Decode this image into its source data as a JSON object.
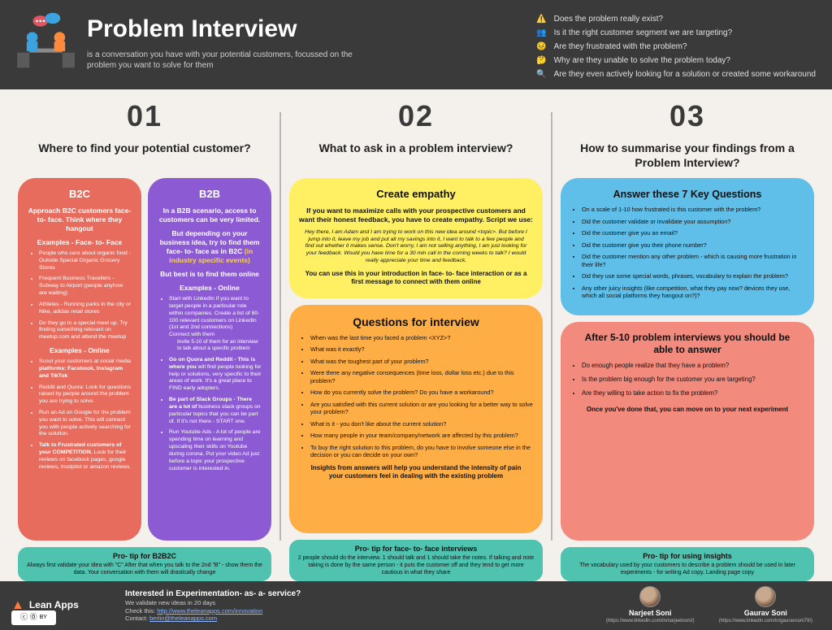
{
  "colors": {
    "page_bg": "#f4f0eb",
    "header_bg": "#3a3a3a",
    "footer_bg": "#3a3a3a",
    "divider": "#b6b6b6",
    "salmon": "#e86c5d",
    "purple": "#8c5bd4",
    "purple_accent": "#ffd24a",
    "yellow": "#fff063",
    "orange": "#ffae45",
    "blue": "#5fbfe9",
    "rose": "#f28a7d",
    "teal": "#4fc3b0"
  },
  "header": {
    "title": "Problem Interview",
    "subtitle": "is a conversation you have with your potential customers, focussed on the problem you want to solve for them",
    "questions": [
      "Does the problem really exist?",
      "Is it the right customer segment we are targeting?",
      "Are they frustrated with the problem?",
      "Why are they unable to solve the problem today?",
      "Are they even actively looking for a solution or created some workaround"
    ],
    "q_icons": [
      "⚠️",
      "👥",
      "😣",
      "🤔",
      "🔍"
    ]
  },
  "col1": {
    "num": "01",
    "title": "Where to find your potential customer?",
    "b2c": {
      "heading": "B2C",
      "lead": "Approach B2C customers face- to- face. Think where they hangout",
      "sub1": "Examples - Face- to- Face",
      "face_items": [
        "People who care about organic food - Outside Special Organic Grocery Stores",
        "Frequent Business Travellers - Subway to Airport (people anyhow are waiting)",
        "Athletes - Running parks in the city or Nike, adidas retail stores",
        "Do they go to a special meet up. Try finding something relevant on meetup.com and attend the meetup"
      ],
      "sub2": "Examples - Online",
      "online_items": [
        "Scout your customers at social media <b>platforms: Facebook, Instagram and TikTok</b>",
        "Reddit and Quora: Look for questions raised by people around the problem you are trying to solve.",
        "Run an Ad on Google for the problem you want to solve. This will connect you with people actively searching for the solution.",
        "<b>Talk to Frustrated customers of your COMPETITION.</b> Look for their reviews on facebook pages, google reviews, trustpilot or amazon reviews."
      ]
    },
    "b2b": {
      "heading": "B2B",
      "lead": "In a B2B scenario, access to customers can be very limited.",
      "lead2_pre": "But depending on your business idea, try to find them face- to- face as in B2C ",
      "lead2_accent": "(in industry specific events)",
      "lead3": "But best is to find them online",
      "sub": "Examples - Online",
      "items": [
        "Start with LinkedIn if you want to target people in a particular role within companies. Create a list of 80-100 relevant customers on LinkedIn (1st and 2nd connections)<br>Connect with them<div class='nested'>Invite 5-10 of them for an interview to talk about a specific problem</div>",
        "<b>Go on Quora and Reddit - This is where you</b> will find people looking for help or solutions, very specific to their areas of work. It's a great place to FIND early adopters.",
        "<b>Be part of Slack Groups - There are a lot of</b> business slack groups on particular topics that you can be part of. If it's not there - START one.",
        "Run Youtube Ads - A lot of people are spending time on learning and upscaling their skills on Youtube during corona. Put your video Ad just before a topic your prospective customer is interested in."
      ]
    },
    "protip": {
      "title": "Pro- tip for B2B2C",
      "body": "Always first validate your idea with \"C\"\nAfter that when you talk to the 2nd \"B\" - show them the data. Your conversation with them will drastically change"
    }
  },
  "col2": {
    "num": "02",
    "title": "What to ask in a problem interview?",
    "empathy": {
      "heading": "Create empathy",
      "lead": "If you want to maximize calls with your prospective customers and want their honest feedback, you have to create empathy. Script we use:",
      "script": "Hey there, I am Adam and I am trying to work on this new idea around <topic>. But before I jump into it, leave my job and put all my savings into it, I want to talk to a few people and find out whether it makes sense. Don't worry, I am not selling anything, I am just looking for your feedback. Would you have time for a 30 min call in the coming weeks to talk? I would really appreciate your time and feedback.",
      "foot": "You can use this in your introduction in face- to- face interaction or as a first message to connect with them online"
    },
    "questions": {
      "heading": "Questions for interview",
      "items": [
        "When was the last time you faced a problem <XYZ>?",
        "What was it exactly?",
        "What was the toughest part of your problem?",
        "Were there any negative consequences (time loss, dollar loss etc.) due to this problem?",
        "How do you currently solve the problem? Do you have a workaround?",
        "Are you satisfied with this current solution or are you looking for a better way to solve your problem?",
        "What is it - you don't like about the current solution?",
        "How many people in your team/company/network are affected by this problem?",
        "To buy the right solution to this problem, do you have to involve someone else in the decision or you can decide on your own?"
      ],
      "closing": "Insights from answers will help you understand the intensity of pain your customers feel in dealing with the existing problem"
    },
    "protip": {
      "title": "Pro- tip for face- to- face interviews",
      "body": "2 people should do the interview. 1 should talk and 1 should take the notes. If talking and note taking is done by the same person - it puts the customer off and they tend to get more cautious in what they share"
    }
  },
  "col3": {
    "num": "03",
    "title": "How to summarise your findings from a Problem Interview?",
    "key7": {
      "heading": "Answer these 7 Key Questions",
      "items": [
        "On a scale of 1-10 how frustrated is this customer with the problem?",
        "Did the customer validate or invalidate your assumption?",
        "Did the customer give you an email?",
        "Did the customer give you their phone number?",
        "Did the customer mention any other problem - which is causing more frustration in their life?",
        "Did they use some special words, phrases, vocabulary to explain the problem?",
        "Any other juicy insights (like competition, what they pay now? devices they use, which all social platforms they hangout on?)?"
      ]
    },
    "after": {
      "heading": "After 5-10 problem interviews you should be able to answer",
      "items": [
        "Do enough people realize that they have a problem?",
        "Is the problem big enough for the customer you are targeting?",
        "Are they willing to take action to fix the problem?"
      ],
      "closing": "Once you've done that, you can move on to your next experiment"
    },
    "protip": {
      "title": "Pro- tip for using insights",
      "body": "The vocabulary used by your customers to describe a problem should be used in later experiments - for writing Ad copy, Landing page copy"
    }
  },
  "footer": {
    "logo": "Lean Apps",
    "cta_title": "Interested in Experimentation- as- a- service?",
    "cta_sub": "We validate new ideas in 20 days",
    "check_label": "Check this: ",
    "check_url": "http://www.theleanapps.com/innovation",
    "contact_label": "Contact: ",
    "contact_email": "berlin@theleanapps.com",
    "authors": [
      {
        "name": "Narjeet Soni",
        "link": "(https://www.linkedin.com/in/narjeetsoni/)"
      },
      {
        "name": "Gaurav Soni",
        "link": "(https://www.linkedin.com/in/gauravsoni79/)"
      }
    ],
    "cc": "© ⓪ ⑊"
  }
}
